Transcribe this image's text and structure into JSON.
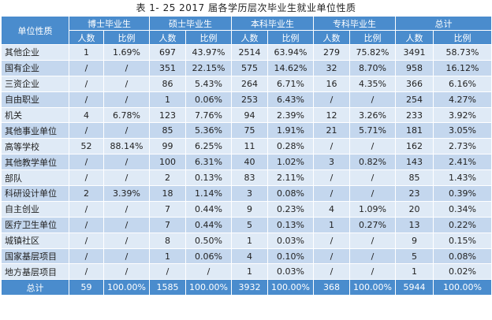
{
  "caption": "表 1- 25  2017 届各学历层次毕业生就业单位性质",
  "header": {
    "unit": "单位性质",
    "groups": [
      "博士毕业生",
      "硕士毕业生",
      "本科毕业生",
      "专科毕业生",
      "总计"
    ],
    "count": "人数",
    "ratio": "比例"
  },
  "rows": [
    {
      "name": "其他企业",
      "v": [
        "1",
        "1.69%",
        "697",
        "43.97%",
        "2514",
        "63.94%",
        "279",
        "75.82%",
        "3491",
        "58.73%"
      ]
    },
    {
      "name": "国有企业",
      "v": [
        "/",
        "/",
        "351",
        "22.15%",
        "575",
        "14.62%",
        "32",
        "8.70%",
        "958",
        "16.12%"
      ]
    },
    {
      "name": "三资企业",
      "v": [
        "/",
        "/",
        "86",
        "5.43%",
        "264",
        "6.71%",
        "16",
        "4.35%",
        "366",
        "6.16%"
      ]
    },
    {
      "name": "自由职业",
      "v": [
        "/",
        "/",
        "1",
        "0.06%",
        "253",
        "6.43%",
        "/",
        "/",
        "254",
        "4.27%"
      ]
    },
    {
      "name": "机关",
      "v": [
        "4",
        "6.78%",
        "123",
        "7.76%",
        "94",
        "2.39%",
        "12",
        "3.26%",
        "233",
        "3.92%"
      ]
    },
    {
      "name": "其他事业单位",
      "v": [
        "/",
        "/",
        "85",
        "5.36%",
        "75",
        "1.91%",
        "21",
        "5.71%",
        "181",
        "3.05%"
      ]
    },
    {
      "name": "高等学校",
      "v": [
        "52",
        "88.14%",
        "99",
        "6.25%",
        "11",
        "0.28%",
        "/",
        "/",
        "162",
        "2.73%"
      ]
    },
    {
      "name": "其他教学单位",
      "v": [
        "/",
        "/",
        "100",
        "6.31%",
        "40",
        "1.02%",
        "3",
        "0.82%",
        "143",
        "2.41%"
      ]
    },
    {
      "name": "部队",
      "v": [
        "/",
        "/",
        "2",
        "0.13%",
        "83",
        "2.11%",
        "/",
        "/",
        "85",
        "1.43%"
      ]
    },
    {
      "name": "科研设计单位",
      "v": [
        "2",
        "3.39%",
        "18",
        "1.14%",
        "3",
        "0.08%",
        "/",
        "/",
        "23",
        "0.39%"
      ]
    },
    {
      "name": "自主创业",
      "v": [
        "/",
        "/",
        "7",
        "0.44%",
        "9",
        "0.23%",
        "4",
        "1.09%",
        "20",
        "0.34%"
      ]
    },
    {
      "name": "医疗卫生单位",
      "v": [
        "/",
        "/",
        "7",
        "0.44%",
        "5",
        "0.13%",
        "1",
        "0.27%",
        "13",
        "0.22%"
      ]
    },
    {
      "name": "城镇社区",
      "v": [
        "/",
        "/",
        "8",
        "0.50%",
        "1",
        "0.03%",
        "/",
        "/",
        "9",
        "0.15%"
      ]
    },
    {
      "name": "国家基层项目",
      "v": [
        "/",
        "/",
        "1",
        "0.06%",
        "4",
        "0.10%",
        "/",
        "/",
        "5",
        "0.08%"
      ]
    },
    {
      "name": "地方基层项目",
      "v": [
        "/",
        "/",
        "/",
        "/",
        "1",
        "0.03%",
        "/",
        "/",
        "1",
        "0.02%"
      ]
    }
  ],
  "total": {
    "name": "总计",
    "v": [
      "59",
      "100.00%",
      "1585",
      "100.00%",
      "3932",
      "100.00%",
      "368",
      "100.00%",
      "5944",
      "100.00%"
    ]
  },
  "colors": {
    "header": "#4a8ccd",
    "row_light": "#dfeaf6",
    "row_dark": "#c4d7ee"
  }
}
